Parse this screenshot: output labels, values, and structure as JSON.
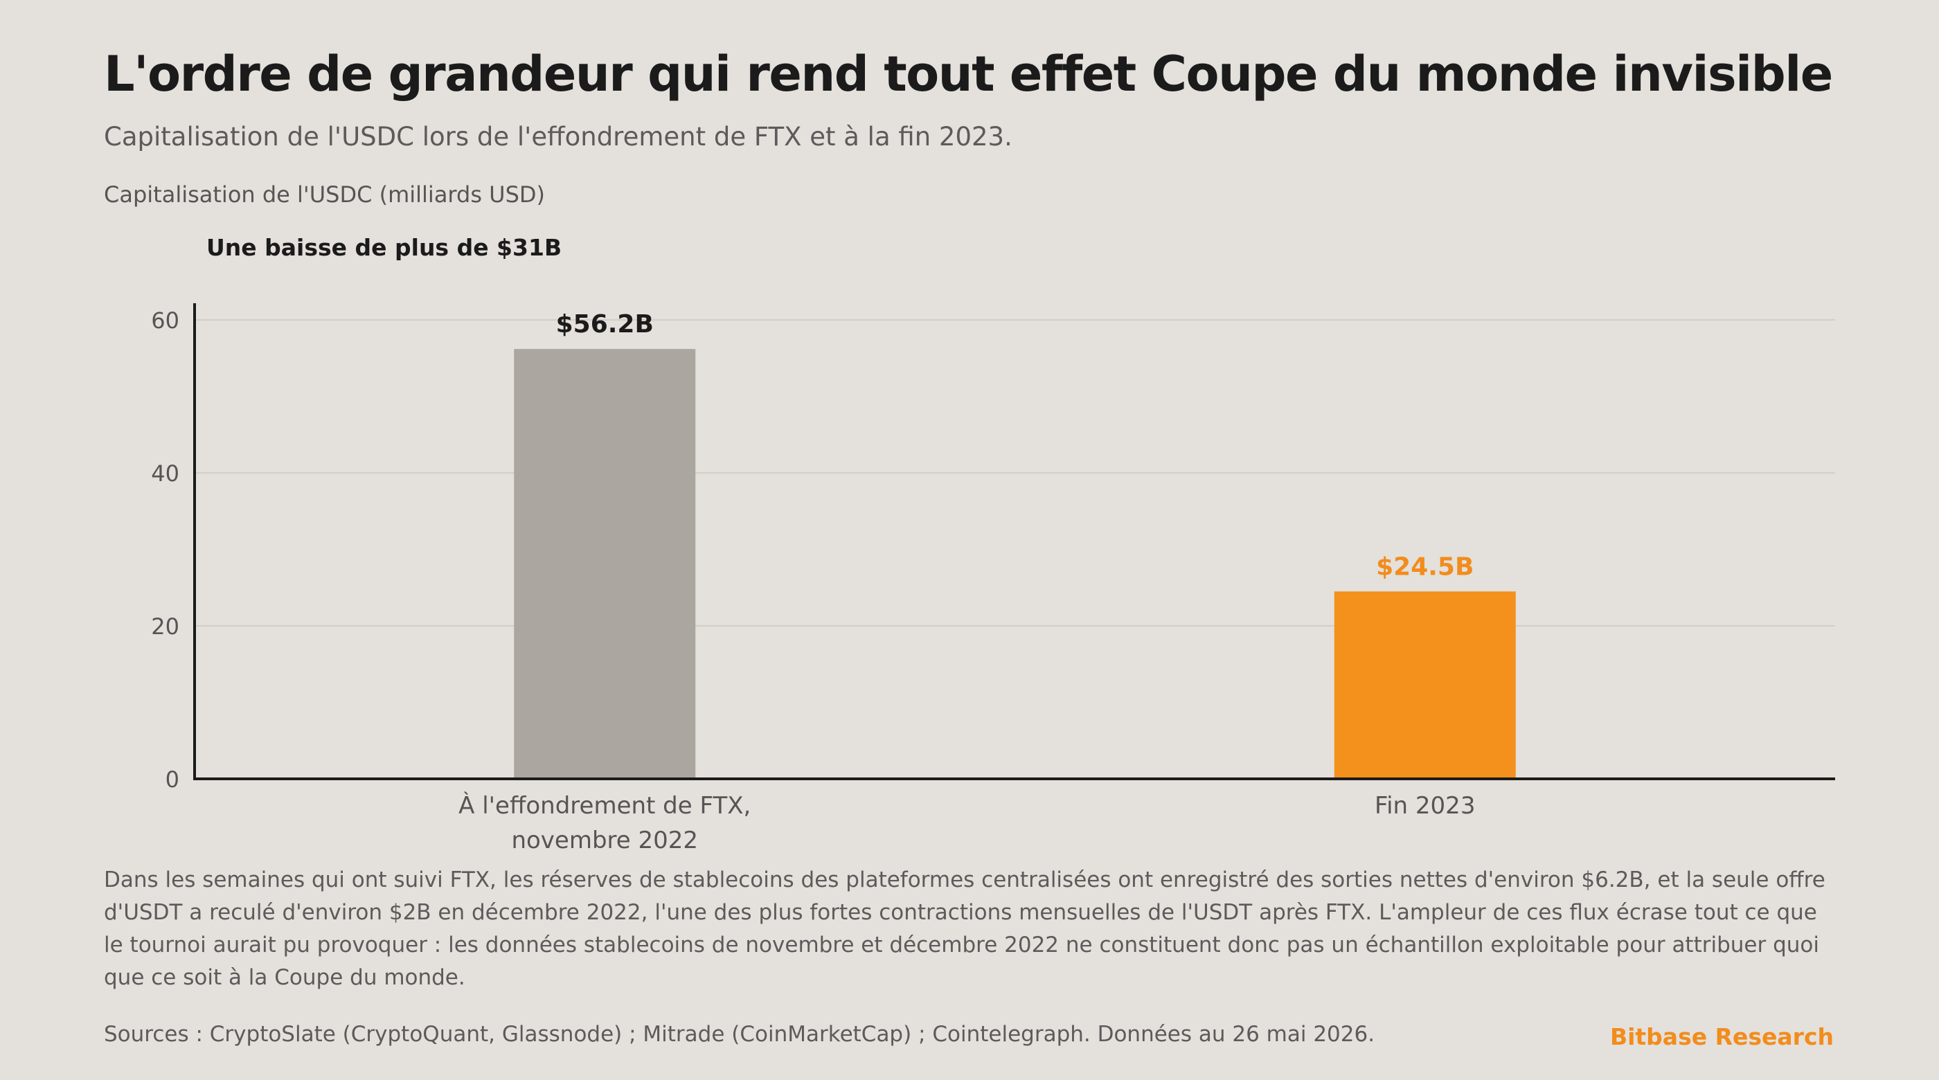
{
  "title": "L'ordre de grandeur qui rend tout effet Coupe du monde invisible",
  "subtitle": "Capitalisation de l'USDC lors de l'effondrement de FTX et à la fin 2023.",
  "axis_title": "Capitalisation de l'USDC (milliards USD)",
  "annotation": "Une baisse de plus de $31B",
  "body_text": "Dans les semaines qui ont suivi FTX, les réserves de stablecoins des plateformes centralisées ont enregistré des sorties nettes d'environ $6.2B, et la seule offre d'USDT a reculé d'environ $2B en décembre 2022, l'une des plus fortes contractions mensuelles de l'USDT après FTX. L'ampleur de ces flux écrase tout ce que le tournoi aurait pu provoquer : les données stablecoins de novembre et décembre 2022 ne constituent donc pas un échantillon exploitable pour attribuer quoi que ce soit à la Coupe du monde.",
  "sources": "Sources : CryptoSlate (CryptoQuant, Glassnode) ; Mitrade (CoinMarketCap) ; Cointelegraph. Données au 26 mai 2026.",
  "brand": "Bitbase Research",
  "colors": {
    "background": "#e4e0db",
    "bar_ftx": "#aba7a0",
    "bar_2023": "#f4901c",
    "label_ftx": "#1b1b1b",
    "label_2023": "#f28c1c",
    "grid": "#d2cdc6",
    "axis": "#1b1b1b"
  },
  "chart_data": {
    "type": "bar",
    "categories": [
      [
        "À l'effondrement de FTX,",
        "novembre 2022"
      ],
      [
        "Fin 2023"
      ]
    ],
    "values": [
      56.2,
      24.5
    ],
    "value_labels": [
      "$56.2B",
      "$24.5B"
    ],
    "ylabel": "Capitalisation de l'USDC (milliards USD)",
    "ylim": [
      0,
      62
    ],
    "yticks": [
      0,
      20,
      40,
      60
    ],
    "grid": true,
    "legend": "none"
  }
}
